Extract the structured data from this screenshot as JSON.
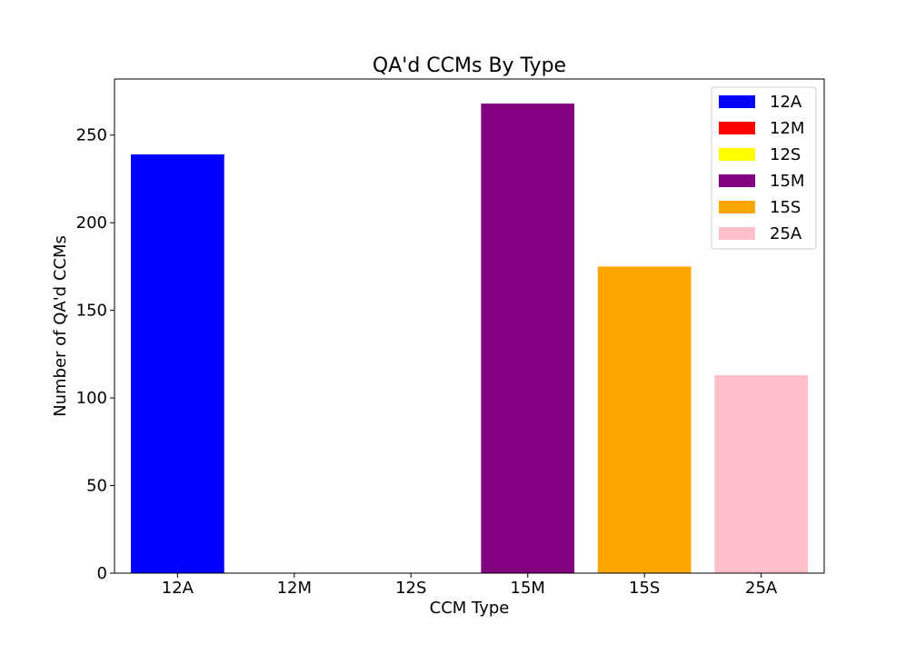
{
  "chart_data": {
    "type": "bar",
    "title": "QA'd CCMs By Type",
    "xlabel": "CCM Type",
    "ylabel": "Number of QA'd CCMs",
    "categories": [
      "12A",
      "12M",
      "12S",
      "15M",
      "15S",
      "25A"
    ],
    "values": [
      239,
      0,
      0,
      268,
      175,
      113
    ],
    "colors": [
      "#0000ff",
      "#ff0000",
      "#ffff00",
      "#800080",
      "#ffa500",
      "#ffc0cb"
    ],
    "ylim": [
      0,
      282
    ],
    "yticks": [
      0,
      50,
      100,
      150,
      200,
      250
    ],
    "grid": false,
    "legend": {
      "placement": "top-right",
      "entries": [
        "12A",
        "12M",
        "12S",
        "15M",
        "15S",
        "25A"
      ]
    }
  }
}
